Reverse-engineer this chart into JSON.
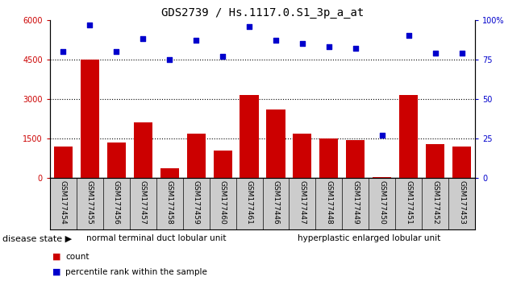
{
  "title": "GDS2739 / Hs.1117.0.S1_3p_a_at",
  "samples": [
    "GSM177454",
    "GSM177455",
    "GSM177456",
    "GSM177457",
    "GSM177458",
    "GSM177459",
    "GSM177460",
    "GSM177461",
    "GSM177446",
    "GSM177447",
    "GSM177448",
    "GSM177449",
    "GSM177450",
    "GSM177451",
    "GSM177452",
    "GSM177453"
  ],
  "counts": [
    1200,
    4500,
    1350,
    2100,
    380,
    1700,
    1050,
    3150,
    2600,
    1700,
    1500,
    1450,
    30,
    3150,
    1300,
    1200
  ],
  "percentiles": [
    80,
    97,
    80,
    88,
    75,
    87,
    77,
    96,
    87,
    85,
    83,
    82,
    27,
    90,
    79,
    79
  ],
  "group1_label": "normal terminal duct lobular unit",
  "group2_label": "hyperplastic enlarged lobular unit",
  "group1_count": 8,
  "group2_count": 8,
  "ylim_left": [
    0,
    6000
  ],
  "ylim_right": [
    0,
    100
  ],
  "yticks_left": [
    0,
    1500,
    3000,
    4500,
    6000
  ],
  "yticks_right": [
    0,
    25,
    50,
    75,
    100
  ],
  "bar_color": "#cc0000",
  "dot_color": "#0000cc",
  "group1_bg": "#99ee99",
  "group2_bg": "#44cc44",
  "xlabel_area_bg": "#cccccc",
  "disease_state_label": "disease state",
  "legend_count_label": "count",
  "legend_pct_label": "percentile rank within the sample",
  "title_fontsize": 10,
  "tick_fontsize": 7,
  "label_fontsize": 8,
  "sample_fontsize": 6.5
}
